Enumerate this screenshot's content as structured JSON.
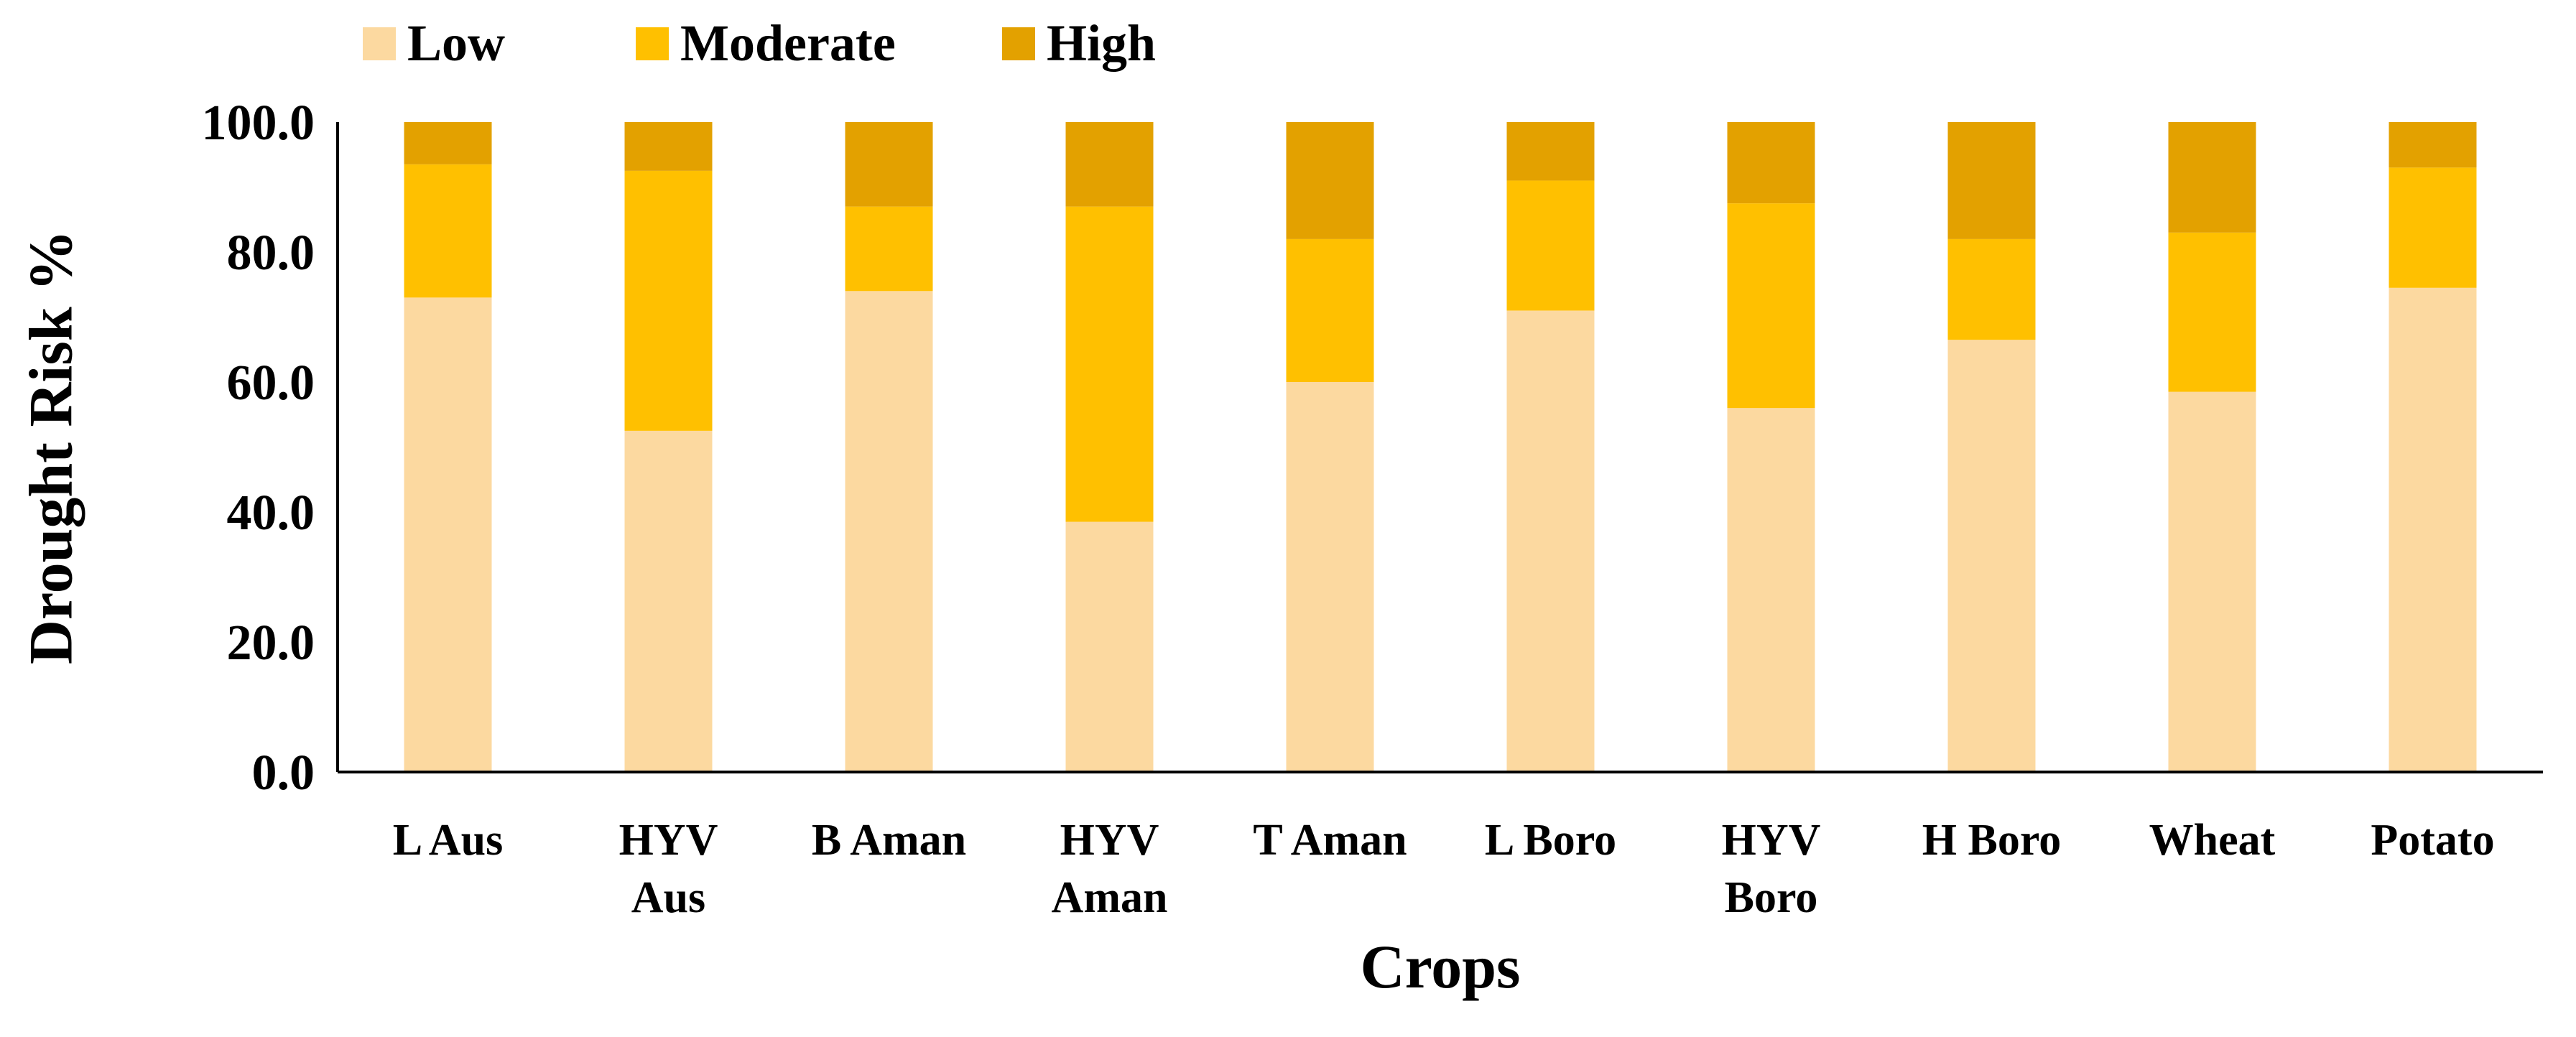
{
  "chart_data": {
    "type": "bar",
    "stacked": true,
    "title": "",
    "xlabel": "Crops",
    "ylabel": "Drought Risk %",
    "ylim": [
      0,
      100
    ],
    "yticks": [
      0,
      20,
      40,
      60,
      80,
      100
    ],
    "ytick_labels": [
      "0.0",
      "20.0",
      "40.0",
      "60.0",
      "80.0",
      "100.0"
    ],
    "grid": false,
    "legend_position": "top-left",
    "categories": [
      [
        "L Aus"
      ],
      [
        "HYV",
        "Aus"
      ],
      [
        "B Aman"
      ],
      [
        "HYV",
        "Aman"
      ],
      [
        "T Aman"
      ],
      [
        "L Boro"
      ],
      [
        "HYV",
        "Boro"
      ],
      [
        "H Boro"
      ],
      [
        "Wheat"
      ],
      [
        "Potato"
      ]
    ],
    "series": [
      {
        "name": "Low",
        "color": "#FCD9A0",
        "values": [
          73.0,
          52.5,
          74.0,
          38.5,
          60.0,
          71.0,
          56.0,
          66.5,
          58.5,
          74.5
        ]
      },
      {
        "name": "Moderate",
        "color": "#FFC000",
        "values": [
          20.5,
          40.0,
          13.0,
          48.5,
          22.0,
          20.0,
          31.5,
          15.5,
          24.5,
          18.5
        ]
      },
      {
        "name": "High",
        "color": "#E3A100",
        "values": [
          6.5,
          7.5,
          13.0,
          13.0,
          18.0,
          9.0,
          12.5,
          18.0,
          17.0,
          7.0
        ]
      }
    ]
  }
}
